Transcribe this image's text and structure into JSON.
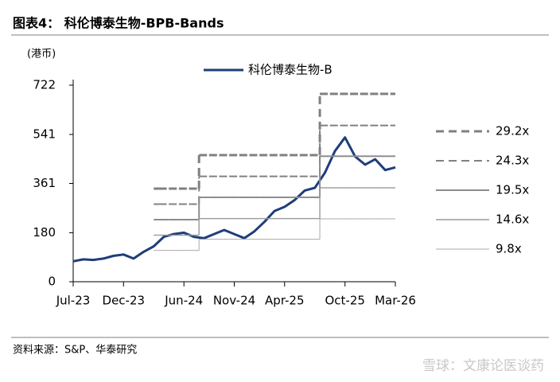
{
  "chart_data": {
    "type": "line",
    "title": "图表4：  科伦博泰生物-BPB-Bands",
    "y_unit": "(港币)",
    "source": "资料来源：S&P、华泰研究",
    "watermark": "雪球：文康论医谈药",
    "x": [
      "2023-07",
      "2023-08",
      "2023-09",
      "2023-10",
      "2023-11",
      "2023-12",
      "2024-01",
      "2024-02",
      "2024-03",
      "2024-04",
      "2024-05",
      "2024-06",
      "2024-07",
      "2024-08",
      "2024-09",
      "2024-10",
      "2024-11",
      "2024-12",
      "2025-01",
      "2025-02",
      "2025-03",
      "2025-04",
      "2025-05",
      "2025-06",
      "2025-07",
      "2025-08",
      "2025-09",
      "2025-10",
      "2025-11",
      "2025-12",
      "2026-01",
      "2026-02",
      "2026-03"
    ],
    "xlim": [
      "2023-07",
      "2026-03"
    ],
    "xticks": [
      {
        "value": "2023-07",
        "label": "Jul-23"
      },
      {
        "value": "2023-12",
        "label": "Dec-23"
      },
      {
        "value": "2024-06",
        "label": "Jun-24"
      },
      {
        "value": "2024-11",
        "label": "Nov-24"
      },
      {
        "value": "2025-04",
        "label": "Apr-25"
      },
      {
        "value": "2025-10",
        "label": "Oct-25"
      },
      {
        "value": "2026-03",
        "label": "Mar-26"
      }
    ],
    "ylim": [
      0,
      722
    ],
    "yticks": [
      0,
      180,
      361,
      541,
      722
    ],
    "series": [
      {
        "name": "科伦博泰生物-B",
        "color": "#1f3d7a",
        "line_style": "solid",
        "values": [
          75,
          82,
          80,
          85,
          95,
          100,
          85,
          110,
          130,
          165,
          175,
          180,
          165,
          160,
          175,
          190,
          175,
          160,
          185,
          220,
          260,
          275,
          300,
          335,
          345,
          400,
          480,
          530,
          460,
          430,
          450,
          410,
          420
        ]
      },
      {
        "name": "29.2x",
        "color": "#808080",
        "line_style": "dashed",
        "values": [
          null,
          null,
          null,
          null,
          null,
          null,
          null,
          null,
          342,
          342,
          342,
          342,
          342,
          465,
          465,
          465,
          465,
          465,
          465,
          465,
          465,
          465,
          465,
          465,
          465,
          690,
          690,
          690,
          690,
          690,
          690,
          690,
          690
        ]
      },
      {
        "name": "24.3x",
        "color": "#808080",
        "line_style": "dashed",
        "values": [
          null,
          null,
          null,
          null,
          null,
          null,
          null,
          null,
          285,
          285,
          285,
          285,
          285,
          387,
          387,
          387,
          387,
          387,
          387,
          387,
          387,
          387,
          387,
          387,
          387,
          574,
          574,
          574,
          574,
          574,
          574,
          574,
          574
        ]
      },
      {
        "name": "19.5x",
        "color": "#8c8c8c",
        "line_style": "solid",
        "values": [
          null,
          null,
          null,
          null,
          null,
          null,
          null,
          null,
          228,
          228,
          228,
          228,
          228,
          310,
          310,
          310,
          310,
          310,
          310,
          310,
          310,
          310,
          310,
          310,
          310,
          461,
          461,
          461,
          461,
          461,
          461,
          461,
          461
        ]
      },
      {
        "name": "14.6x",
        "color": "#9a9a9a",
        "line_style": "solid",
        "values": [
          null,
          null,
          null,
          null,
          null,
          null,
          null,
          null,
          171,
          171,
          171,
          171,
          171,
          232,
          232,
          232,
          232,
          232,
          232,
          232,
          232,
          232,
          232,
          232,
          232,
          345,
          345,
          345,
          345,
          345,
          345,
          345,
          345
        ]
      },
      {
        "name": "9.8x",
        "color": "#a8a8a8",
        "line_style": "solid",
        "values": [
          null,
          null,
          null,
          null,
          null,
          null,
          null,
          null,
          115,
          115,
          115,
          115,
          115,
          156,
          156,
          156,
          156,
          156,
          156,
          156,
          156,
          156,
          156,
          156,
          156,
          231,
          231,
          231,
          231,
          231,
          231,
          231,
          231
        ]
      }
    ]
  }
}
